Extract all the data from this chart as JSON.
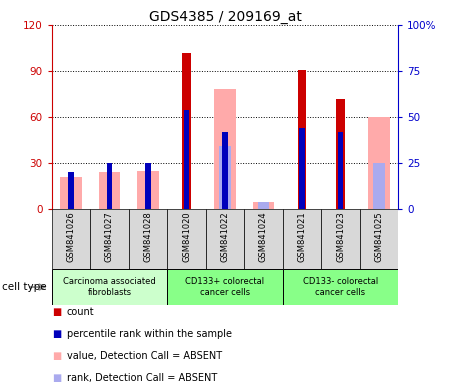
{
  "title": "GDS4385 / 209169_at",
  "samples": [
    "GSM841026",
    "GSM841027",
    "GSM841028",
    "GSM841020",
    "GSM841022",
    "GSM841024",
    "GSM841021",
    "GSM841023",
    "GSM841025"
  ],
  "group_info": [
    {
      "start": 0,
      "end": 3,
      "color": "#ccffcc",
      "label": "Carcinoma associated\nfibroblasts"
    },
    {
      "start": 3,
      "end": 6,
      "color": "#88ff88",
      "label": "CD133+ colorectal\ncancer cells"
    },
    {
      "start": 6,
      "end": 9,
      "color": "#88ff88",
      "label": "CD133- colorectal\ncancer cells"
    }
  ],
  "count_values": [
    0,
    0,
    0,
    102,
    0,
    0,
    91,
    72,
    0
  ],
  "pink_bar_values": [
    21,
    24,
    25,
    0,
    78,
    5,
    0,
    0,
    60
  ],
  "lightblue_values": [
    0,
    0,
    0,
    0,
    41,
    5,
    0,
    0,
    30
  ],
  "rank_values": [
    20,
    25,
    25,
    54,
    42,
    0,
    44,
    42,
    0
  ],
  "ylim_left": [
    0,
    120
  ],
  "ylim_right": [
    0,
    100
  ],
  "yticks_left": [
    0,
    30,
    60,
    90,
    120
  ],
  "yticks_right": [
    0,
    25,
    50,
    75,
    100
  ],
  "ytick_labels_left": [
    "0",
    "30",
    "60",
    "90",
    "120"
  ],
  "ytick_labels_right": [
    "0",
    "25",
    "50",
    "75",
    "100%"
  ],
  "left_axis_color": "#cc0000",
  "right_axis_color": "#0000cc",
  "bar_red": "#cc0000",
  "bar_blue": "#0000bb",
  "bar_pink": "#ffaaaa",
  "bar_lblue": "#aaaaee",
  "bg_gray": "#d8d8d8",
  "plot_bg": "#ffffff",
  "legend_items": [
    {
      "color": "#cc0000",
      "label": "count"
    },
    {
      "color": "#0000bb",
      "label": "percentile rank within the sample"
    },
    {
      "color": "#ffaaaa",
      "label": "value, Detection Call = ABSENT"
    },
    {
      "color": "#aaaaee",
      "label": "rank, Detection Call = ABSENT"
    }
  ]
}
